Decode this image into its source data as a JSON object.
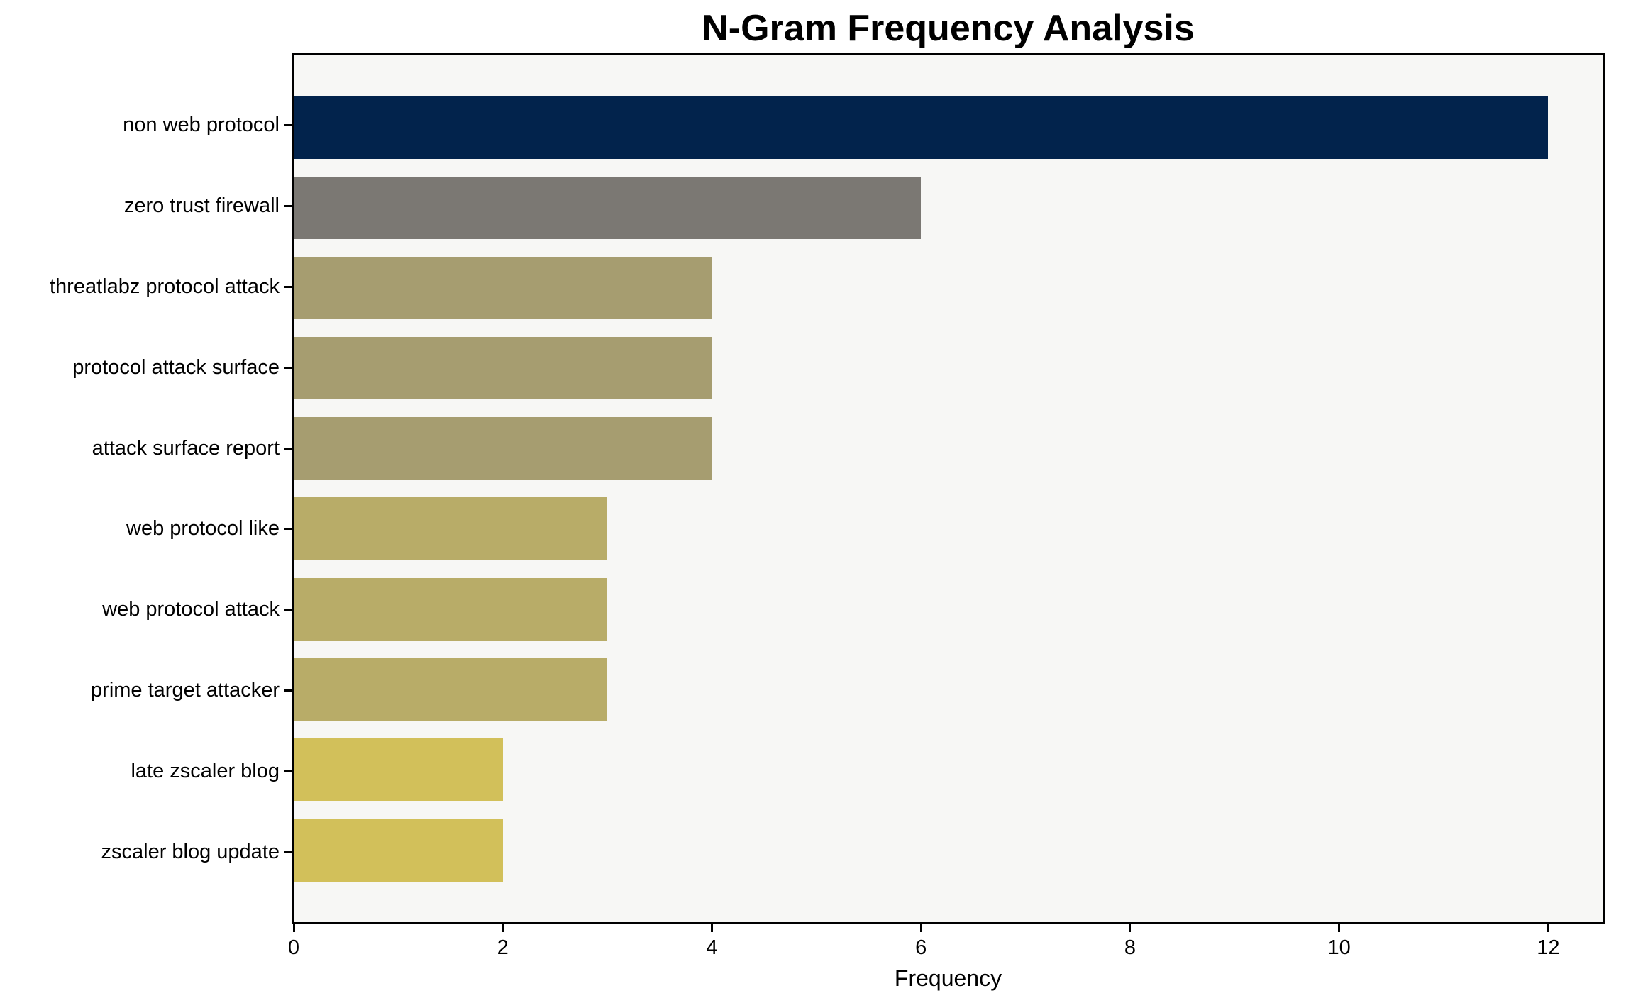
{
  "chart_data": {
    "type": "bar",
    "orientation": "horizontal",
    "title": "N-Gram Frequency Analysis",
    "xlabel": "Frequency",
    "ylabel": "",
    "categories": [
      "non web protocol",
      "zero trust firewall",
      "threatlabz protocol attack",
      "protocol attack surface",
      "attack surface report",
      "web protocol like",
      "web protocol attack",
      "prime target attacker",
      "late zscaler blog",
      "zscaler blog update"
    ],
    "values": [
      12,
      6,
      4,
      4,
      4,
      3,
      3,
      3,
      2,
      2
    ],
    "bar_colors": [
      "#02234c",
      "#7b7873",
      "#a69d70",
      "#a69d70",
      "#a69d70",
      "#b8ac68",
      "#b8ac68",
      "#b8ac68",
      "#d2c05a",
      "#d2c05a"
    ],
    "xticks": [
      0,
      2,
      4,
      6,
      8,
      10,
      12
    ],
    "xlim": [
      0,
      12.52
    ],
    "grid": false,
    "legend": null,
    "plot_background": "#f7f7f5",
    "frame_color": "#000000",
    "tick_color": "#000000",
    "text_color": "#000000"
  }
}
